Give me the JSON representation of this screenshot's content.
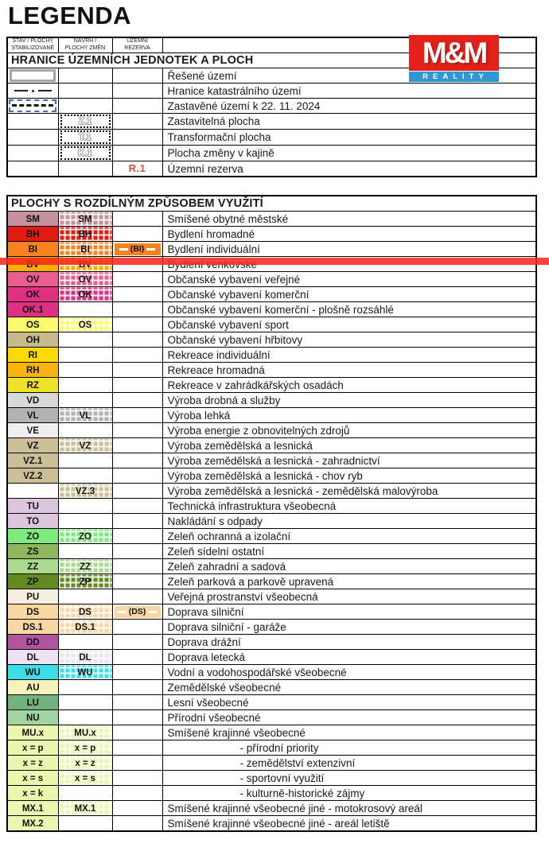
{
  "title": "LEGENDA",
  "logo": {
    "top": "M&M",
    "bottom": "REALITY",
    "red": "#e32119",
    "blue": "#2f97d4"
  },
  "columns": {
    "col1_line1": "STAV / PLOCHY",
    "col1_line2": "STABILIZOVANÉ",
    "col2_line1": "NÁVRH /",
    "col2_line2": "PLOCHY ZMĚN",
    "col3_line1": "ÚZEMNÍ",
    "col3_line2": "REZERVA"
  },
  "section1": {
    "header": "HRANICE ÚZEMNÍCH JEDNOTEK A PLOCH",
    "rows": [
      {
        "symbol": "solved-area",
        "label": "Řešené území"
      },
      {
        "symbol": "dash-dot-line",
        "label": "Hranice katastrálního území"
      },
      {
        "symbol": "built-up-area",
        "label": "Zastavěné území k 22. 11. 2024"
      },
      {
        "code": "Z.1",
        "label": "Zastavitelná plocha"
      },
      {
        "code": "T.1",
        "label": "Transformační plocha"
      },
      {
        "code": "K.1",
        "label": "Plocha změny v kajině"
      },
      {
        "reserve_code": "R.1",
        "label": "Územní rezerva"
      }
    ]
  },
  "section2": {
    "header": "PLOCHY S ROZDÍLNÝM ZPŮSOBEM VYUŽITÍ",
    "rows": [
      {
        "stav": "SM",
        "navrh": "SM",
        "rezerva": "",
        "label": "Smíšené obytné městské",
        "color": "#c4919c",
        "indent": false
      },
      {
        "stav": "BH",
        "navrh": "BH",
        "rezerva": "",
        "label": "Bydlení hromadné",
        "color": "#df1b12",
        "indent": false
      },
      {
        "stav": "BI",
        "navrh": "BI",
        "rezerva": "(BI)",
        "label": "Bydlení individuální",
        "color": "#f6831f",
        "indent": false
      },
      {
        "stav": "BV",
        "navrh": "BV",
        "rezerva": "",
        "label": "Bydlení venkovské",
        "color": "#f8ae00",
        "indent": false
      },
      {
        "stav": "OV",
        "navrh": "OV",
        "rezerva": "",
        "label": "Občanské vybavení veřejné",
        "color": "#e85e90",
        "indent": false
      },
      {
        "stav": "OK",
        "navrh": "OK",
        "rezerva": "",
        "label": "Občanské vybavení komerční",
        "color": "#de3181",
        "indent": false
      },
      {
        "stav": "OK.1",
        "navrh": "",
        "rezerva": "",
        "label": "Občanské vybavení komerční - plošně rozsáhlé",
        "color": "#de3181",
        "indent": false
      },
      {
        "stav": "OS",
        "navrh": "OS",
        "rezerva": "",
        "label": "Občanské vybavení sport",
        "color": "#fbfa6a",
        "indent": false
      },
      {
        "stav": "OH",
        "navrh": "",
        "rezerva": "",
        "label": "Občanské vybavení hřbitovy",
        "color": "#c6ba8d",
        "indent": false
      },
      {
        "stav": "RI",
        "navrh": "",
        "rezerva": "",
        "label": "Rekreace individuální",
        "color": "#fed903",
        "indent": false
      },
      {
        "stav": "RH",
        "navrh": "",
        "rezerva": "",
        "label": "Rekreace hromadná",
        "color": "#f6b40d",
        "indent": false
      },
      {
        "stav": "RZ",
        "navrh": "",
        "rezerva": "",
        "label": "Rekreace v zahrádkářských osadách",
        "color": "#eee32a",
        "indent": false
      },
      {
        "stav": "VD",
        "navrh": "",
        "rezerva": "",
        "label": "Výroba drobná a služby",
        "color": "#d9d9d9",
        "indent": false
      },
      {
        "stav": "VL",
        "navrh": "VL",
        "rezerva": "",
        "label": "Výroba lehká",
        "color": "#b3b3b3",
        "indent": false
      },
      {
        "stav": "VE",
        "navrh": "",
        "rezerva": "",
        "label": "Výroba energie z obnovitelných zdrojů",
        "color": "#efefef",
        "indent": false
      },
      {
        "stav": "VZ",
        "navrh": "VZ",
        "rezerva": "",
        "label": "Výroba zemědělská a lesnická",
        "color": "#cbbf97",
        "indent": false
      },
      {
        "stav": "VZ.1",
        "navrh": "",
        "rezerva": "",
        "label": "Výroba zemědělská a lesnická - zahradnictví",
        "color": "#cbbf97",
        "indent": false
      },
      {
        "stav": "VZ.2",
        "navrh": "",
        "rezerva": "",
        "label": "Výroba zemědělská a lesnická - chov ryb",
        "color": "#cbbf97",
        "indent": false
      },
      {
        "stav": "",
        "navrh": "VZ.3",
        "rezerva": "",
        "label": "Výroba zemědělská a lesnická - zemědělská malovýroba",
        "color": "#cbbf97",
        "indent": false
      },
      {
        "stav": "TU",
        "navrh": "",
        "rezerva": "",
        "label": "Technická infrastruktura všeobecná",
        "color": "#dac5dd",
        "indent": false
      },
      {
        "stav": "TO",
        "navrh": "",
        "rezerva": "",
        "label": "Nakládání s odpady",
        "color": "#dac5dd",
        "indent": false
      },
      {
        "stav": "ZO",
        "navrh": "ZO",
        "rezerva": "",
        "label": "Zeleň ochranná a izolační",
        "color": "#7ceb7c",
        "indent": false
      },
      {
        "stav": "ZS",
        "navrh": "",
        "rezerva": "",
        "label": "Zeleň sídelní ostatní",
        "color": "#8cb75e",
        "indent": false
      },
      {
        "stav": "ZZ",
        "navrh": "ZZ",
        "rezerva": "",
        "label": "Zeleň zahradní a sadová",
        "color": "#a9da8e",
        "indent": false
      },
      {
        "stav": "ZP",
        "navrh": "ZP",
        "rezerva": "",
        "label": "Zeleň parková a parkově upravená",
        "color": "#638a20",
        "indent": false
      },
      {
        "stav": "PU",
        "navrh": "",
        "rezerva": "",
        "label": "Veřejná prostranství všeobecná",
        "color": "#f5eede",
        "indent": false
      },
      {
        "stav": "DS",
        "navrh": "DS",
        "rezerva": "(DS)",
        "label": "Doprava silniční",
        "color": "#f9d6a2",
        "indent": false
      },
      {
        "stav": "DS.1",
        "navrh": "DS.1",
        "rezerva": "",
        "label": "Doprava silniční - garáže",
        "color": "#f9d6a2",
        "indent": false
      },
      {
        "stav": "DD",
        "navrh": "",
        "rezerva": "",
        "label": "Doprava drážní",
        "color": "#b054a0",
        "indent": false
      },
      {
        "stav": "DL",
        "navrh": "DL",
        "rezerva": "",
        "label": "Doprava letecká",
        "color": "#eee1f3",
        "indent": false
      },
      {
        "stav": "WU",
        "navrh": "WU",
        "rezerva": "",
        "label": "Vodní a vodohospodářské všeobecné",
        "color": "#3cdfe9",
        "indent": false
      },
      {
        "stav": "AU",
        "navrh": "",
        "rezerva": "",
        "label": "Zemědělské všeobecné",
        "color": "#f6f2bb",
        "indent": false
      },
      {
        "stav": "LU",
        "navrh": "",
        "rezerva": "",
        "label": "Lesní všeobecné",
        "color": "#74b181",
        "indent": false
      },
      {
        "stav": "NU",
        "navrh": "",
        "rezerva": "",
        "label": "Přírodní všeobecné",
        "color": "#a4d3a3",
        "indent": false
      },
      {
        "stav": "MU.x",
        "navrh": "MU.x",
        "rezerva": "",
        "label": "Smíšené krajinné všeobecné",
        "color": "#e9f7af",
        "indent": false
      },
      {
        "stav": "x = p",
        "navrh": "x = p",
        "rezerva": "",
        "label": "- přírodní priority",
        "color": "#e9f7af",
        "indent": true
      },
      {
        "stav": "x = z",
        "navrh": "x = z",
        "rezerva": "",
        "label": "- zemědělství extenzivní",
        "color": "#e9f7af",
        "indent": true
      },
      {
        "stav": "x = s",
        "navrh": "x = s",
        "rezerva": "",
        "label": "- sportovní využití",
        "color": "#e9f7af",
        "indent": true
      },
      {
        "stav": "x = k",
        "navrh": "",
        "rezerva": "",
        "label": "- kulturně-historické zájmy",
        "color": "#e9f7af",
        "indent": true
      },
      {
        "stav": "MX.1",
        "navrh": "MX.1",
        "rezerva": "",
        "label": "Smíšené krajinné všeobecné jiné - motokrosový areál",
        "color": "#e9f7af",
        "indent": false
      },
      {
        "stav": "MX.2",
        "navrh": "",
        "rezerva": "",
        "label": "Smíšené krajinné všeobecné jiné - areál letiště",
        "color": "#e9f7af",
        "indent": false
      }
    ]
  },
  "annotation": {
    "type": "highlight-line",
    "color": "#f5291c"
  }
}
